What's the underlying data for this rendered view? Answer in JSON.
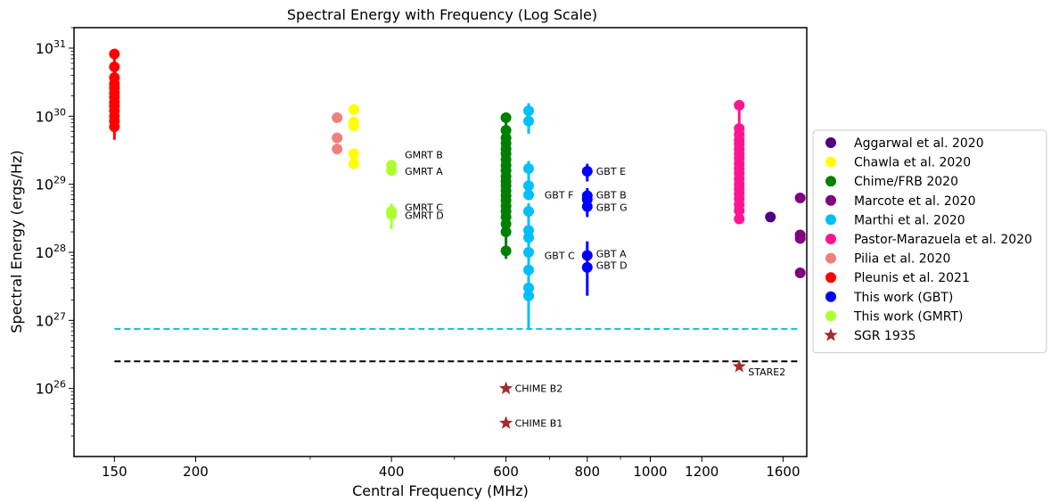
{
  "chart_data": {
    "type": "scatter",
    "title": "Spectral Energy with Frequency (Log Scale)",
    "xlabel": "Central Frequency (MHz)",
    "ylabel": "Spectral Energy (ergs/Hz)",
    "x_scale": "log",
    "y_scale": "log",
    "xlim": [
      130,
      1740
    ],
    "ylim": [
      1e+25,
      2e+31
    ],
    "x_ticks": [
      150,
      200,
      400,
      600,
      800,
      1000,
      1200,
      1600
    ],
    "x_tick_labels": [
      "150",
      "200",
      "400",
      "600",
      "800",
      "1000",
      "1200",
      "1600"
    ],
    "y_ticks": [
      {
        "value": 1e+26,
        "base": "10",
        "exp": "26"
      },
      {
        "value": 1e+27,
        "base": "10",
        "exp": "27"
      },
      {
        "value": 1e+28,
        "base": "10",
        "exp": "28"
      },
      {
        "value": 1e+29,
        "base": "10",
        "exp": "29"
      },
      {
        "value": 1e+30,
        "base": "10",
        "exp": "30"
      },
      {
        "value": 1e+31,
        "base": "10",
        "exp": "31"
      }
    ],
    "grid": false,
    "legend_position": "right",
    "reference_lines": [
      {
        "y": 7.5e+26,
        "color": "#17becf",
        "style": "dashed",
        "x_range": [
          150,
          1700
        ]
      },
      {
        "y": 2.5e+26,
        "color": "#000000",
        "style": "dashed",
        "x_range": [
          150,
          1700
        ]
      }
    ],
    "series": [
      {
        "name": "Aggarwal et al. 2020",
        "color": "#4b0082",
        "marker": "circle",
        "points": [
          {
            "x": 1530,
            "y": 3.3e+28
          }
        ]
      },
      {
        "name": "Chawla et al. 2020",
        "color": "#ffff00",
        "marker": "circle",
        "points": [
          {
            "x": 350,
            "y": 1.25e+30
          },
          {
            "x": 350,
            "y": 8.2e+29
          },
          {
            "x": 350,
            "y": 7.2e+29
          },
          {
            "x": 350,
            "y": 2.8e+29
          },
          {
            "x": 350,
            "y": 2e+29
          }
        ]
      },
      {
        "name": "Chime/FRB 2020",
        "color": "#008000",
        "marker": "circle",
        "error_range": [
          8e+27,
          1.05e+30
        ],
        "points": [
          {
            "x": 600,
            "y": 9.5e+29
          },
          {
            "x": 600,
            "y": 6.2e+29
          },
          {
            "x": 600,
            "y": 4.8e+29
          },
          {
            "x": 600,
            "y": 4e+29
          },
          {
            "x": 600,
            "y": 3.3e+29
          },
          {
            "x": 600,
            "y": 2.8e+29
          },
          {
            "x": 600,
            "y": 2.3e+29
          },
          {
            "x": 600,
            "y": 1.9e+29
          },
          {
            "x": 600,
            "y": 1.6e+29
          },
          {
            "x": 600,
            "y": 1.3e+29
          },
          {
            "x": 600,
            "y": 1.1e+29
          },
          {
            "x": 600,
            "y": 9.5e+28
          },
          {
            "x": 600,
            "y": 8e+28
          },
          {
            "x": 600,
            "y": 6.8e+28
          },
          {
            "x": 600,
            "y": 5.8e+28
          },
          {
            "x": 600,
            "y": 4.8e+28
          },
          {
            "x": 600,
            "y": 4e+28
          },
          {
            "x": 600,
            "y": 3.3e+28
          },
          {
            "x": 600,
            "y": 2.6e+28
          },
          {
            "x": 600,
            "y": 2e+28
          },
          {
            "x": 600,
            "y": 1.05e+28
          }
        ]
      },
      {
        "name": "Marcote et al. 2020",
        "color": "#800080",
        "marker": "circle",
        "points": [
          {
            "x": 1700,
            "y": 6.3e+28
          },
          {
            "x": 1700,
            "y": 1.8e+28
          },
          {
            "x": 1700,
            "y": 1.6e+28
          },
          {
            "x": 1700,
            "y": 5e+27
          }
        ]
      },
      {
        "name": "Marthi et al. 2020",
        "color": "#00bfff",
        "marker": "circle",
        "points": [
          {
            "x": 650,
            "y": 1.2e+30
          },
          {
            "x": 650,
            "y": 8.5e+29
          },
          {
            "x": 650,
            "y": 1.7e+29
          },
          {
            "x": 650,
            "y": 9.5e+28
          },
          {
            "x": 650,
            "y": 7e+28
          },
          {
            "x": 650,
            "y": 4e+28
          },
          {
            "x": 650,
            "y": 2.1e+28
          },
          {
            "x": 650,
            "y": 1.65e+28
          },
          {
            "x": 650,
            "y": 1e+28
          },
          {
            "x": 650,
            "y": 5.5e+27
          },
          {
            "x": 650,
            "y": 3e+27
          },
          {
            "x": 650,
            "y": 2.3e+27
          }
        ],
        "error_bars": [
          {
            "x": 650,
            "low": 7.5e+26,
            "high": 5.3e+28
          },
          {
            "x": 650,
            "low": 5.5e+29,
            "high": 1.55e+30
          },
          {
            "x": 650,
            "low": 7.5e+28,
            "high": 2.2e+29
          }
        ]
      },
      {
        "name": "Pastor-Marazuela et al. 2020",
        "color": "#ff1493",
        "marker": "circle",
        "error_range": [
          3.1e+28,
          1.45e+30
        ],
        "points": [
          {
            "x": 1370,
            "y": 1.45e+30
          },
          {
            "x": 1370,
            "y": 6.6e+29
          },
          {
            "x": 1370,
            "y": 5.4e+29
          },
          {
            "x": 1370,
            "y": 4.5e+29
          },
          {
            "x": 1370,
            "y": 3.9e+29
          },
          {
            "x": 1370,
            "y": 3.3e+29
          },
          {
            "x": 1370,
            "y": 2.8e+29
          },
          {
            "x": 1370,
            "y": 2.4e+29
          },
          {
            "x": 1370,
            "y": 2e+29
          },
          {
            "x": 1370,
            "y": 1.7e+29
          },
          {
            "x": 1370,
            "y": 1.45e+29
          },
          {
            "x": 1370,
            "y": 1.2e+29
          },
          {
            "x": 1370,
            "y": 1e+29
          },
          {
            "x": 1370,
            "y": 8.6e+28
          },
          {
            "x": 1370,
            "y": 7.3e+28
          },
          {
            "x": 1370,
            "y": 6.1e+28
          },
          {
            "x": 1370,
            "y": 5e+28
          },
          {
            "x": 1370,
            "y": 4.1e+28
          },
          {
            "x": 1370,
            "y": 3.1e+28
          }
        ]
      },
      {
        "name": "Pilia et al. 2020",
        "color": "#f08080",
        "marker": "circle",
        "points": [
          {
            "x": 330,
            "y": 9.5e+29
          },
          {
            "x": 330,
            "y": 4.8e+29
          },
          {
            "x": 330,
            "y": 3.3e+29
          }
        ]
      },
      {
        "name": "Pleunis et al. 2021",
        "color": "#ff0000",
        "marker": "circle",
        "error_range": [
          4.5e+29,
          8.3e+30
        ],
        "points": [
          {
            "x": 150,
            "y": 8.2e+30
          },
          {
            "x": 150,
            "y": 5.3e+30
          },
          {
            "x": 150,
            "y": 3.7e+30
          },
          {
            "x": 150,
            "y": 3e+30
          },
          {
            "x": 150,
            "y": 2.6e+30
          },
          {
            "x": 150,
            "y": 2.2e+30
          },
          {
            "x": 150,
            "y": 1.9e+30
          },
          {
            "x": 150,
            "y": 1.6e+30
          },
          {
            "x": 150,
            "y": 1.4e+30
          },
          {
            "x": 150,
            "y": 1.2e+30
          },
          {
            "x": 150,
            "y": 1e+30
          },
          {
            "x": 150,
            "y": 8.5e+29
          },
          {
            "x": 150,
            "y": 7e+29
          }
        ]
      },
      {
        "name": "This work (GBT)",
        "color": "#0000ff",
        "marker": "circle",
        "points": [
          {
            "x": 800,
            "y": 1.55e+29,
            "label": "GBT E",
            "err": [
              1.1e+29,
              2e+29
            ]
          },
          {
            "x": 800,
            "y": 6.8e+28,
            "label": "GBT B",
            "err": [
              4.5e+28,
              8.8e+28
            ]
          },
          {
            "x": 800,
            "y": 6e+28,
            "label": "GBT F",
            "label_side": "left"
          },
          {
            "x": 800,
            "y": 4.7e+28,
            "label": "GBT G",
            "err": [
              3.3e+28,
              6e+28
            ]
          },
          {
            "x": 800,
            "y": 9e+27,
            "label": "GBT A",
            "err": [
              2.3e+27,
              1.45e+28
            ]
          },
          {
            "x": 800,
            "y": 6e+27,
            "label": "GBT D"
          },
          {
            "x": 800,
            "y": 9e+27,
            "label": "GBT C",
            "label_side": "left",
            "hidden": true
          }
        ]
      },
      {
        "name": "This work (GMRT)",
        "color": "#adff2f",
        "marker": "circle",
        "points": [
          {
            "x": 400,
            "y": 1.9e+29,
            "label": "GMRT B",
            "err": [
              1.4e+29,
              2.1e+29
            ]
          },
          {
            "x": 400,
            "y": 1.6e+29,
            "label": "GMRT A"
          },
          {
            "x": 400,
            "y": 4e+28,
            "label": "GMRT C",
            "err": [
              2.2e+28,
              5.2e+28
            ]
          },
          {
            "x": 400,
            "y": 3.6e+28,
            "label": "GMRT D"
          }
        ]
      },
      {
        "name": "SGR 1935",
        "color": "#a52a2a",
        "marker": "star",
        "points": [
          {
            "x": 600,
            "y": 1e+26,
            "label": "CHIME B2"
          },
          {
            "x": 600,
            "y": 3.1e+25,
            "label": "CHIME B1"
          },
          {
            "x": 1370,
            "y": 2.1e+26,
            "label": "STARE2"
          }
        ]
      }
    ]
  }
}
